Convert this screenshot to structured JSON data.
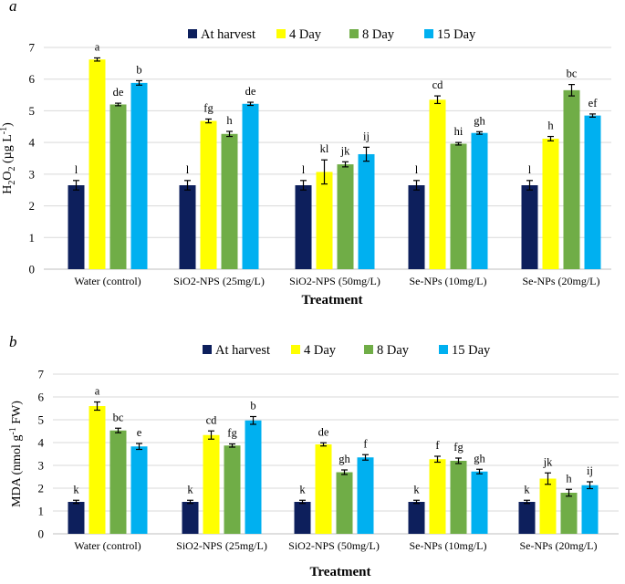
{
  "chart_data": [
    {
      "type": "bar",
      "panel_label": "a",
      "title": "",
      "xlabel": "Treatment",
      "ylabel_parts": [
        "H",
        "2",
        "O",
        "2",
        " (µg L",
        "-1",
        ")"
      ],
      "ylim": [
        0,
        7
      ],
      "yticks": [
        "0",
        "1",
        "2",
        "3",
        "4",
        "5",
        "6",
        "7"
      ],
      "grid": true,
      "legend_position": "top",
      "categories": [
        "Water (control)",
        "SiO2-NPS (25mg/L)",
        "SiO2-NPS (50mg/L)",
        "Se-NPs (10mg/L)",
        "Se-NPs (20mg/L)"
      ],
      "series": [
        {
          "name": "At harvest",
          "color": "#0d1f5c",
          "values": [
            2.65,
            2.65,
            2.65,
            2.65,
            2.65
          ],
          "errors": [
            0.15,
            0.15,
            0.15,
            0.15,
            0.15
          ],
          "labels": [
            "l",
            "l",
            "l",
            "l",
            "l"
          ]
        },
        {
          "name": "4 Day",
          "color": "#ffff00",
          "values": [
            6.62,
            4.68,
            3.07,
            5.35,
            4.12
          ],
          "errors": [
            0.05,
            0.06,
            0.38,
            0.12,
            0.07
          ],
          "labels": [
            "a",
            "fg",
            "kl",
            "cd",
            "h"
          ]
        },
        {
          "name": "8 Day",
          "color": "#70ad47",
          "values": [
            5.2,
            4.27,
            3.31,
            3.96,
            5.65
          ],
          "errors": [
            0.04,
            0.08,
            0.08,
            0.04,
            0.18
          ],
          "labels": [
            "de",
            "h",
            "jk",
            "hi",
            "bc"
          ]
        },
        {
          "name": "15 Day",
          "color": "#00b0f0",
          "values": [
            5.88,
            5.22,
            3.63,
            4.3,
            4.85
          ],
          "errors": [
            0.07,
            0.05,
            0.22,
            0.04,
            0.05
          ],
          "labels": [
            "b",
            "de",
            "ij",
            "gh",
            "ef"
          ]
        }
      ]
    },
    {
      "type": "bar",
      "panel_label": "b",
      "title": "",
      "xlabel": "Treatment",
      "ylabel_parts": [
        "MDA (nmol g",
        "-1",
        " FW)"
      ],
      "ylim": [
        0,
        7
      ],
      "yticks": [
        "0",
        "1",
        "2",
        "3",
        "4",
        "5",
        "6",
        "7"
      ],
      "grid": true,
      "legend_position": "top",
      "categories": [
        "Water (control)",
        "SiO2-NPS (25mg/L)",
        "SiO2-NPS (50mg/L)",
        "Se-NPs (10mg/L)",
        "Se-NPs (20mg/L)"
      ],
      "series": [
        {
          "name": "At harvest",
          "color": "#0d1f5c",
          "values": [
            1.4,
            1.4,
            1.4,
            1.4,
            1.4
          ],
          "errors": [
            0.07,
            0.07,
            0.07,
            0.07,
            0.07
          ],
          "labels": [
            "k",
            "k",
            "k",
            "k",
            "k"
          ]
        },
        {
          "name": "4 Day",
          "color": "#ffff00",
          "values": [
            5.6,
            4.33,
            3.92,
            3.27,
            2.42
          ],
          "errors": [
            0.18,
            0.18,
            0.07,
            0.13,
            0.25
          ],
          "labels": [
            "a",
            "cd",
            "de",
            "f",
            "jk"
          ]
        },
        {
          "name": "8 Day",
          "color": "#70ad47",
          "values": [
            4.53,
            3.87,
            2.7,
            3.2,
            1.8
          ],
          "errors": [
            0.1,
            0.07,
            0.1,
            0.12,
            0.15
          ],
          "labels": [
            "bc",
            "fg",
            "gh",
            "fg",
            "h"
          ]
        },
        {
          "name": "15 Day",
          "color": "#00b0f0",
          "values": [
            3.83,
            4.97,
            3.35,
            2.73,
            2.13
          ],
          "errors": [
            0.13,
            0.17,
            0.12,
            0.1,
            0.15
          ],
          "labels": [
            "e",
            "b",
            "f",
            "gh",
            "ij"
          ]
        }
      ]
    }
  ]
}
